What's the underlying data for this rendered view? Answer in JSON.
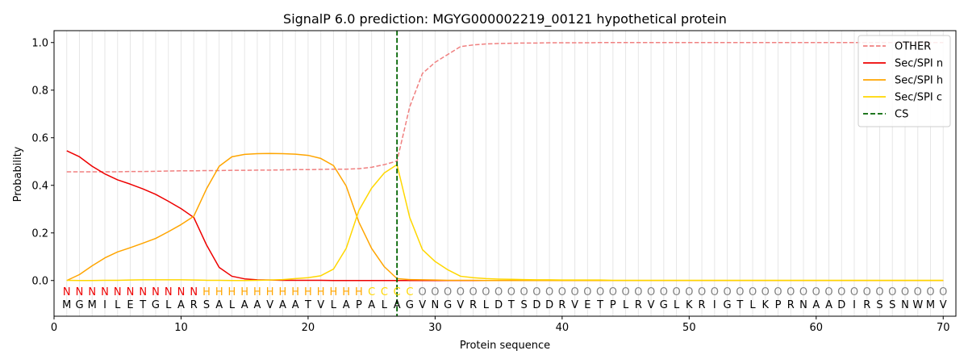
{
  "chart_data": {
    "type": "line",
    "title": "SignalP 6.0 prediction: MGYG000002219_00121 hypothetical protein",
    "xlabel": "Protein sequence",
    "ylabel": "Probability",
    "xlim": [
      0,
      71
    ],
    "ylim": [
      -0.15,
      1.05
    ],
    "xticks": [
      0,
      10,
      20,
      30,
      40,
      50,
      60,
      70
    ],
    "yticks": [
      0.0,
      0.2,
      0.4,
      0.6,
      0.8,
      1.0
    ],
    "grid": "vertical-per-residue",
    "legend": "top-right",
    "sequence": "MGMILETGLARSALAAVAATVLAPALAGVNGVRLDTSDDRVETPLRVGLKRIGTLKPRNAADIRSSNWMV",
    "labels": "NNNNNNNNNNNHHHHHHHHHHHHHCCCCOOOOOOOOOOOOOOOOOOOOOOOOOOOOOOOOOOOOOOOOOOO",
    "label_colors": {
      "N": "#ee0000",
      "H": "#ffa500",
      "C": "#ffd700",
      "O": "#808080"
    },
    "series": [
      {
        "name": "OTHER",
        "color": "#f08080",
        "dash": true,
        "values": [
          0.457,
          0.457,
          0.457,
          0.457,
          0.457,
          0.458,
          0.458,
          0.459,
          0.46,
          0.461,
          0.461,
          0.462,
          0.462,
          0.463,
          0.463,
          0.464,
          0.464,
          0.465,
          0.466,
          0.466,
          0.467,
          0.468,
          0.468,
          0.47,
          0.476,
          0.487,
          0.502,
          0.73,
          0.87,
          0.917,
          0.95,
          0.983,
          0.99,
          0.994,
          0.996,
          0.997,
          0.998,
          0.998,
          0.999,
          0.999,
          0.999,
          0.999,
          1.0,
          1.0,
          1.0,
          1.0,
          1.0,
          1.0,
          1.0,
          1.0,
          1.0,
          1.0,
          1.0,
          1.0,
          1.0,
          1.0,
          1.0,
          1.0,
          1.0,
          1.0,
          1.0,
          1.0,
          1.0,
          1.0,
          1.0,
          1.0,
          1.0,
          1.0,
          1.0,
          1.0
        ]
      },
      {
        "name": "Sec/SPI n",
        "color": "#ee0000",
        "dash": false,
        "values": [
          0.545,
          0.52,
          0.48,
          0.448,
          0.423,
          0.405,
          0.385,
          0.362,
          0.333,
          0.302,
          0.265,
          0.15,
          0.055,
          0.018,
          0.007,
          0.003,
          0.002,
          0.001,
          0.001,
          0.001,
          0.001,
          0.0,
          0.0,
          0.0,
          0.0,
          0.0,
          0.0,
          0.0,
          0.0,
          0.0,
          0.0,
          0.0,
          0.0,
          0.0,
          0.0,
          0.0,
          0.0,
          0.0,
          0.0,
          0.0,
          0.0,
          0.0,
          0.0,
          0.0,
          0.0,
          0.0,
          0.0,
          0.0,
          0.0,
          0.0,
          0.0,
          0.0,
          0.0,
          0.0,
          0.0,
          0.0,
          0.0,
          0.0,
          0.0,
          0.0,
          0.0,
          0.0,
          0.0,
          0.0,
          0.0,
          0.0,
          0.0,
          0.0,
          0.0,
          0.0
        ]
      },
      {
        "name": "Sec/SPI h",
        "color": "#ffa500",
        "dash": false,
        "values": [
          0.0,
          0.025,
          0.062,
          0.095,
          0.12,
          0.138,
          0.157,
          0.177,
          0.205,
          0.235,
          0.27,
          0.385,
          0.48,
          0.52,
          0.53,
          0.533,
          0.534,
          0.533,
          0.531,
          0.526,
          0.513,
          0.483,
          0.397,
          0.245,
          0.135,
          0.058,
          0.008,
          0.004,
          0.003,
          0.002,
          0.001,
          0.001,
          0.001,
          0.0,
          0.0,
          0.0,
          0.0,
          0.0,
          0.0,
          0.0,
          0.0,
          0.0,
          0.0,
          0.0,
          0.0,
          0.0,
          0.0,
          0.0,
          0.0,
          0.0,
          0.0,
          0.0,
          0.0,
          0.0,
          0.0,
          0.0,
          0.0,
          0.0,
          0.0,
          0.0,
          0.0,
          0.0,
          0.0,
          0.0,
          0.0,
          0.0,
          0.0,
          0.0,
          0.0,
          0.0
        ]
      },
      {
        "name": "Sec/SPI c",
        "color": "#ffd700",
        "dash": false,
        "values": [
          0.001,
          0.0,
          0.0,
          0.001,
          0.001,
          0.002,
          0.003,
          0.003,
          0.003,
          0.003,
          0.002,
          0.001,
          0.001,
          0.0,
          0.0,
          0.001,
          0.002,
          0.004,
          0.008,
          0.012,
          0.02,
          0.048,
          0.135,
          0.295,
          0.388,
          0.452,
          0.487,
          0.265,
          0.13,
          0.08,
          0.045,
          0.018,
          0.012,
          0.008,
          0.006,
          0.005,
          0.004,
          0.003,
          0.003,
          0.002,
          0.002,
          0.002,
          0.002,
          0.001,
          0.001,
          0.001,
          0.001,
          0.001,
          0.001,
          0.001,
          0.001,
          0.001,
          0.001,
          0.001,
          0.001,
          0.001,
          0.001,
          0.001,
          0.001,
          0.001,
          0.001,
          0.001,
          0.001,
          0.001,
          0.001,
          0.001,
          0.001,
          0.001,
          0.001,
          0.001
        ]
      }
    ],
    "cs": {
      "name": "CS",
      "x": 27,
      "color": "#006400"
    }
  }
}
